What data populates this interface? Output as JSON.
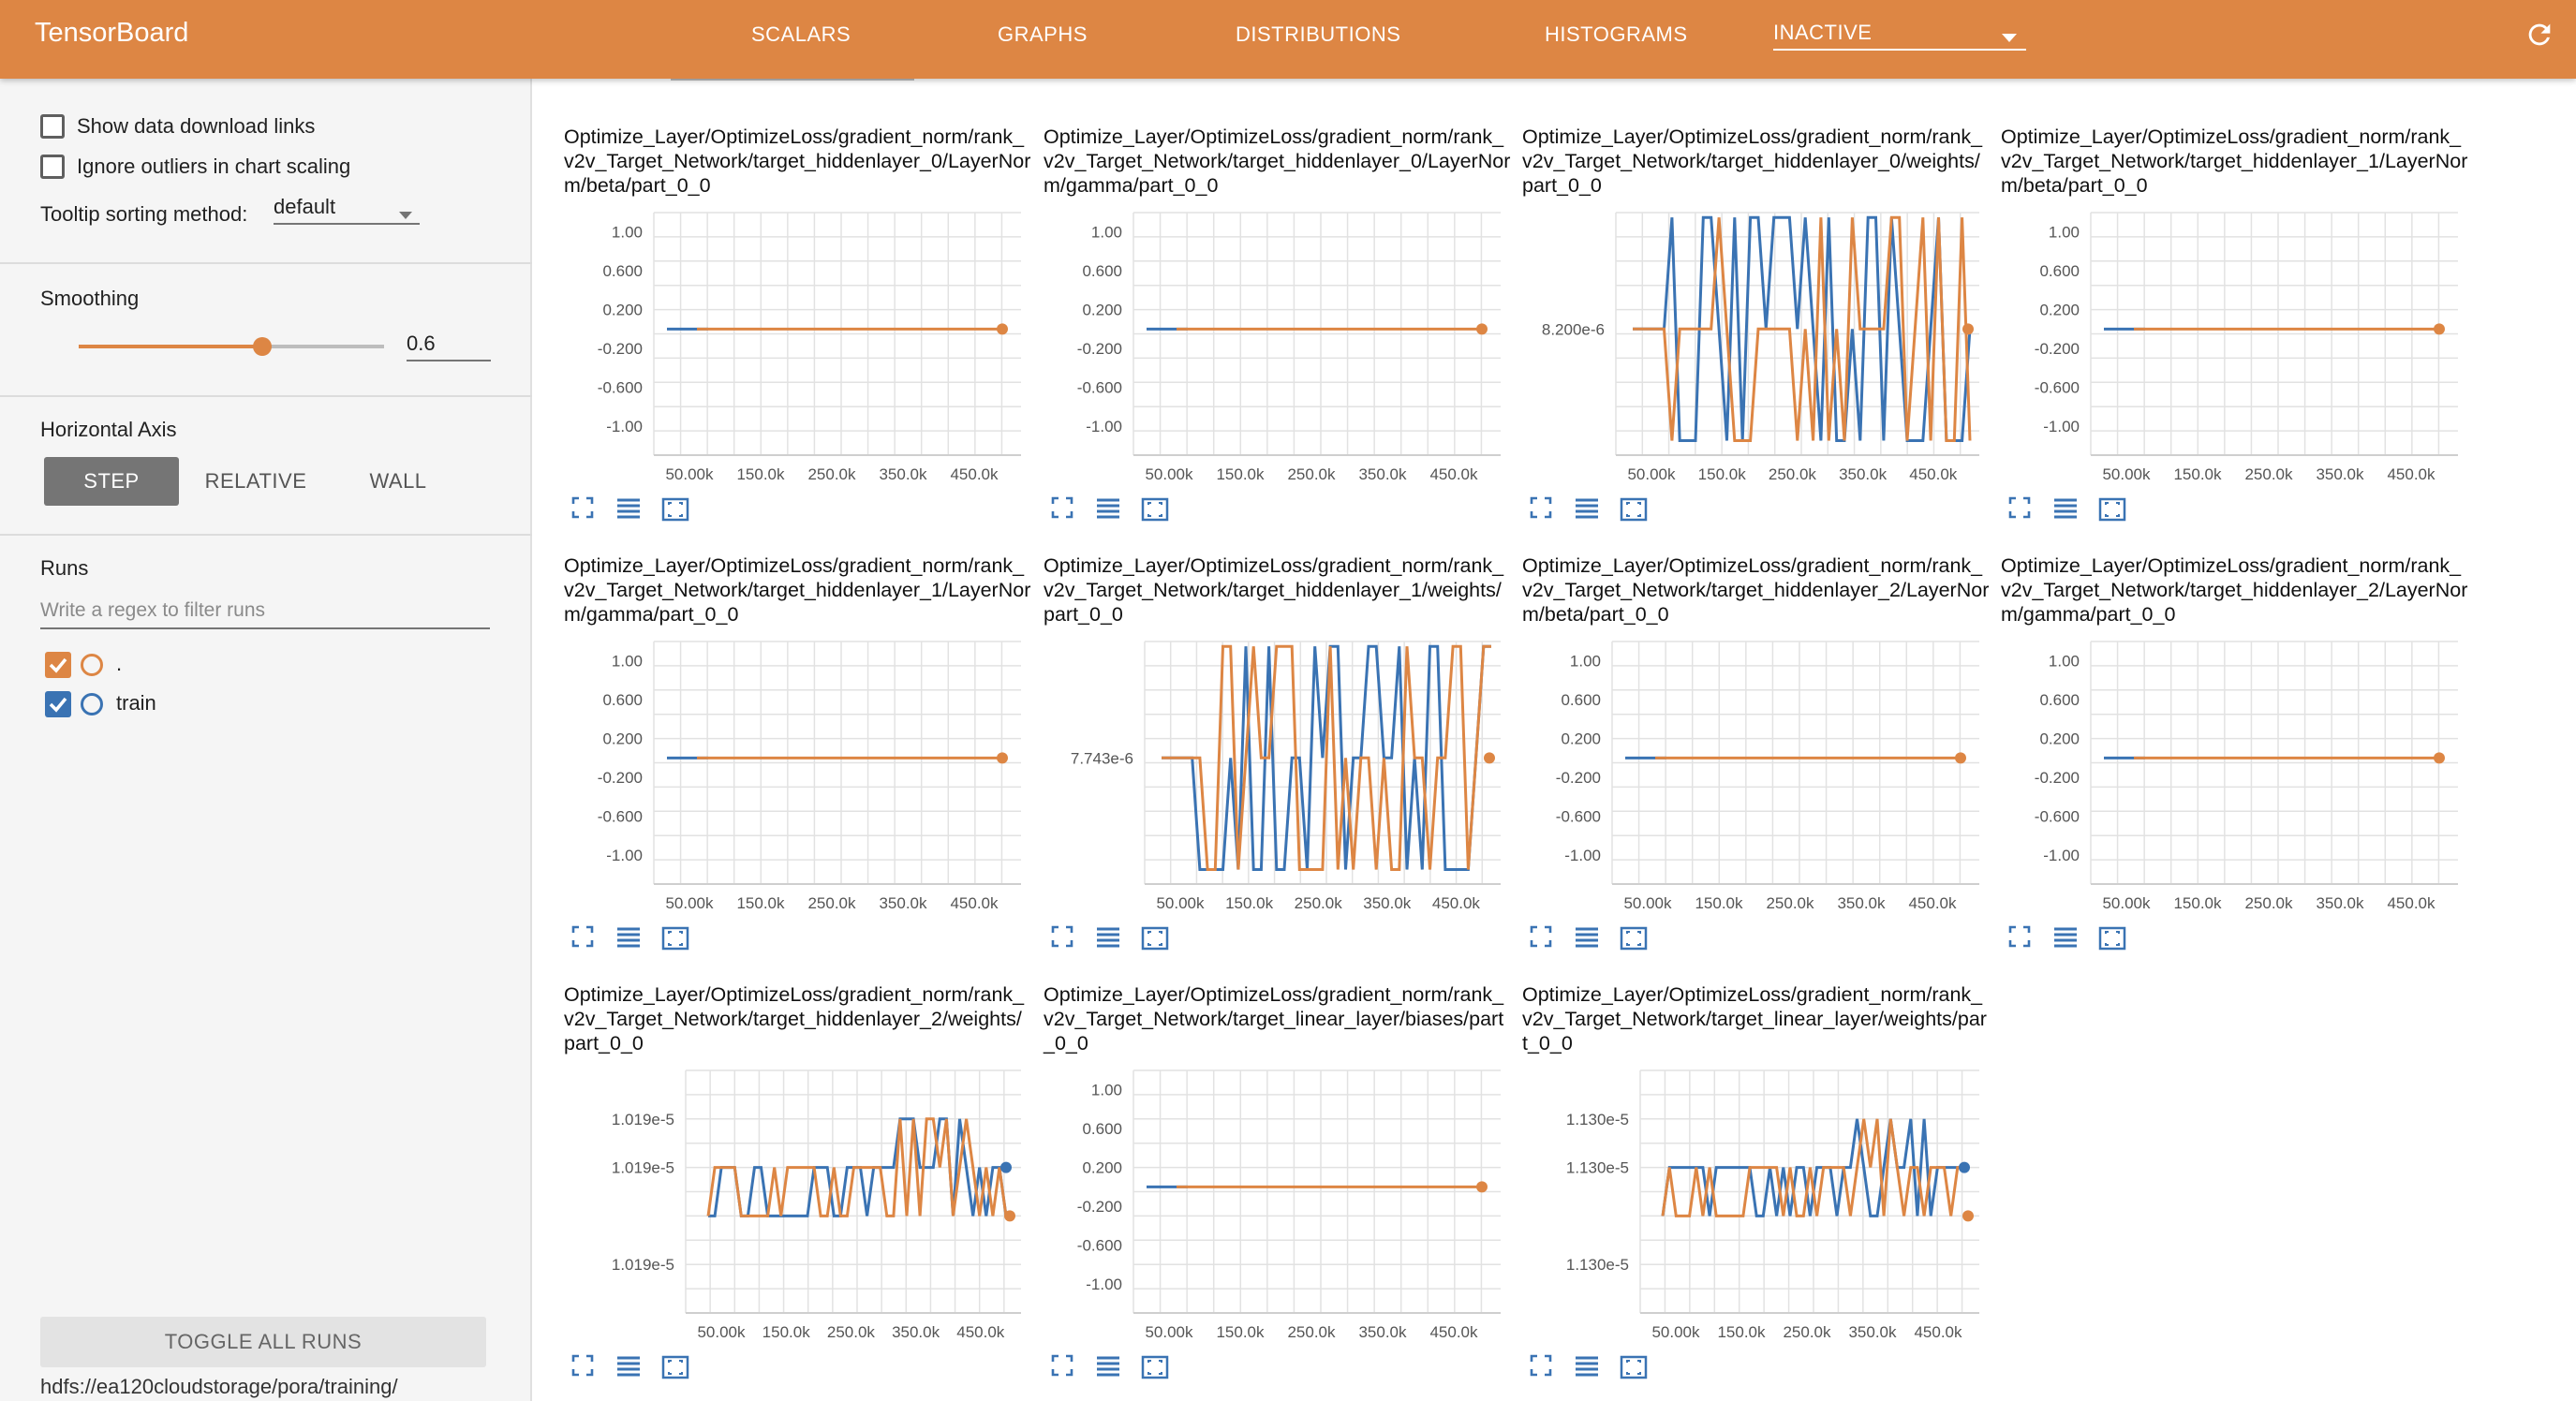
{
  "topbar": {
    "brand": "TensorBoard",
    "tabs": [
      "SCALARS",
      "GRAPHS",
      "DISTRIBUTIONS",
      "HISTOGRAMS"
    ],
    "inactive_label": "INACTIVE",
    "colors": {
      "bar": "#dd8644",
      "text": "#ffffff"
    }
  },
  "sidebar": {
    "show_download_links": "Show data download links",
    "ignore_outliers": "Ignore outliers in chart scaling",
    "tooltip_sorting_label": "Tooltip sorting method:",
    "tooltip_sorting_value": "default",
    "smoothing_title": "Smoothing",
    "smoothing_value": "0.6",
    "smoothing_fraction": 0.6,
    "horizontal_axis_title": "Horizontal Axis",
    "axis_buttons": [
      "STEP",
      "RELATIVE",
      "WALL"
    ],
    "runs_title": "Runs",
    "runs_filter_placeholder": "Write a regex to filter runs",
    "runs": [
      {
        "name": ".",
        "color": "#dd8644",
        "checked": true
      },
      {
        "name": "train",
        "color": "#3a73b3",
        "checked": true
      }
    ],
    "toggle_all": "TOGGLE ALL RUNS",
    "logdir": "hdfs://ea120cloudstorage/pora/training/"
  },
  "icons": {
    "expand": "fullscreen-icon",
    "list": "list-icon",
    "fit": "fit-domain-icon"
  },
  "cards": [
    {
      "title": "Optimize_Layer/OptimizeLoss/gradient_norm/rank_v2v_Target_Network/target_hiddenlayer_0/LayerNorm/beta/part_0_0",
      "chart_data": {
        "type": "line",
        "x_ticks": [
          "50.00k",
          "150.0k",
          "250.0k",
          "350.0k",
          "450.0k"
        ],
        "y_ticks": [
          "1.00",
          "0.600",
          "0.200",
          "-0.200",
          "-0.600",
          "-1.00"
        ],
        "pattern": "flat"
      }
    },
    {
      "title": "Optimize_Layer/OptimizeLoss/gradient_norm/rank_v2v_Target_Network/target_hiddenlayer_0/LayerNorm/gamma/part_0_0",
      "chart_data": {
        "type": "line",
        "x_ticks": [
          "50.00k",
          "150.0k",
          "250.0k",
          "350.0k",
          "450.0k"
        ],
        "y_ticks": [
          "1.00",
          "0.600",
          "0.200",
          "-0.200",
          "-0.600",
          "-1.00"
        ],
        "pattern": "flat"
      }
    },
    {
      "title": "Optimize_Layer/OptimizeLoss/gradient_norm/rank_v2v_Target_Network/target_hiddenlayer_0/weights/part_0_0",
      "chart_data": {
        "type": "line",
        "x_ticks": [
          "50.00k",
          "150.0k",
          "250.0k",
          "350.0k",
          "450.0k"
        ],
        "y_ticks": [
          "8.200e-6"
        ],
        "pattern": "spikes"
      }
    },
    {
      "title": "Optimize_Layer/OptimizeLoss/gradient_norm/rank_v2v_Target_Network/target_hiddenlayer_1/LayerNorm/beta/part_0_0",
      "chart_data": {
        "type": "line",
        "x_ticks": [
          "50.00k",
          "150.0k",
          "250.0k",
          "350.0k",
          "450.0k"
        ],
        "y_ticks": [
          "1.00",
          "0.600",
          "0.200",
          "-0.200",
          "-0.600",
          "-1.00"
        ],
        "pattern": "flat"
      }
    },
    {
      "title": "Optimize_Layer/OptimizeLoss/gradient_norm/rank_v2v_Target_Network/target_hiddenlayer_1/LayerNorm/gamma/part_0_0",
      "chart_data": {
        "type": "line",
        "x_ticks": [
          "50.00k",
          "150.0k",
          "250.0k",
          "350.0k",
          "450.0k"
        ],
        "y_ticks": [
          "1.00",
          "0.600",
          "0.200",
          "-0.200",
          "-0.600",
          "-1.00"
        ],
        "pattern": "flat"
      }
    },
    {
      "title": "Optimize_Layer/OptimizeLoss/gradient_norm/rank_v2v_Target_Network/target_hiddenlayer_1/weights/part_0_0",
      "chart_data": {
        "type": "line",
        "x_ticks": [
          "50.00k",
          "150.0k",
          "250.0k",
          "350.0k",
          "450.0k"
        ],
        "y_ticks": [
          "7.743e-6"
        ],
        "pattern": "spikes"
      }
    },
    {
      "title": "Optimize_Layer/OptimizeLoss/gradient_norm/rank_v2v_Target_Network/target_hiddenlayer_2/LayerNorm/beta/part_0_0",
      "chart_data": {
        "type": "line",
        "x_ticks": [
          "50.00k",
          "150.0k",
          "250.0k",
          "350.0k",
          "450.0k"
        ],
        "y_ticks": [
          "1.00",
          "0.600",
          "0.200",
          "-0.200",
          "-0.600",
          "-1.00"
        ],
        "pattern": "flat"
      }
    },
    {
      "title": "Optimize_Layer/OptimizeLoss/gradient_norm/rank_v2v_Target_Network/target_hiddenlayer_2/LayerNorm/gamma/part_0_0",
      "chart_data": {
        "type": "line",
        "x_ticks": [
          "50.00k",
          "150.0k",
          "250.0k",
          "350.0k",
          "450.0k"
        ],
        "y_ticks": [
          "1.00",
          "0.600",
          "0.200",
          "-0.200",
          "-0.600",
          "-1.00"
        ],
        "pattern": "flat"
      }
    },
    {
      "title": "Optimize_Layer/OptimizeLoss/gradient_norm/rank_v2v_Target_Network/target_hiddenlayer_2/weights/part_0_0",
      "chart_data": {
        "type": "line",
        "x_ticks": [
          "50.00k",
          "150.0k",
          "250.0k",
          "350.0k",
          "450.0k"
        ],
        "y_ticks": [
          "1.019e-5",
          "1.019e-5",
          "1.019e-5"
        ],
        "pattern": "steps"
      }
    },
    {
      "title": "Optimize_Layer/OptimizeLoss/gradient_norm/rank_v2v_Target_Network/target_linear_layer/biases/part_0_0",
      "chart_data": {
        "type": "line",
        "x_ticks": [
          "50.00k",
          "150.0k",
          "250.0k",
          "350.0k",
          "450.0k"
        ],
        "y_ticks": [
          "1.00",
          "0.600",
          "0.200",
          "-0.200",
          "-0.600",
          "-1.00"
        ],
        "pattern": "flat"
      }
    },
    {
      "title": "Optimize_Layer/OptimizeLoss/gradient_norm/rank_v2v_Target_Network/target_linear_layer/weights/part_0_0",
      "chart_data": {
        "type": "line",
        "x_ticks": [
          "50.00k",
          "150.0k",
          "250.0k",
          "350.0k",
          "450.0k"
        ],
        "y_ticks": [
          "1.130e-5",
          "1.130e-5",
          "1.130e-5"
        ],
        "pattern": "steps"
      }
    }
  ]
}
